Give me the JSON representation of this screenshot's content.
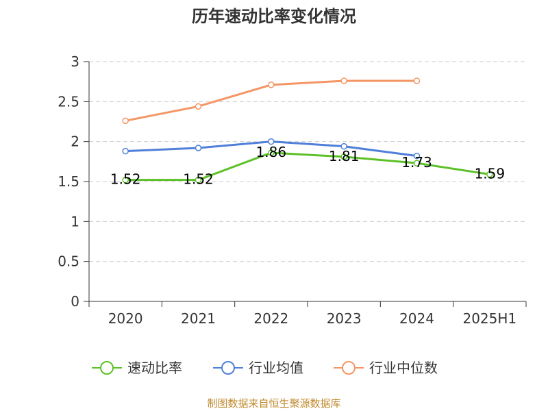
{
  "chart_data": {
    "type": "line",
    "title": "历年速动比率变化情况",
    "categories": [
      "2020",
      "2021",
      "2022",
      "2023",
      "2024",
      "2025H1"
    ],
    "ylim": [
      0,
      3
    ],
    "yticks": [
      "0",
      "0.5",
      "1",
      "1.5",
      "2",
      "2.5",
      "3"
    ],
    "grid": "horizontal dashed",
    "legend_position": "bottom",
    "series": [
      {
        "name": "速动比率",
        "color": "#5cc128",
        "values": [
          1.52,
          1.52,
          1.86,
          1.81,
          1.73,
          1.59
        ],
        "labels": [
          "1.52",
          "1.52",
          "1.86",
          "1.81",
          "1.73",
          "1.59"
        ]
      },
      {
        "name": "行业均值",
        "color": "#4f7fd9",
        "values": [
          1.88,
          1.92,
          2.0,
          1.94,
          1.82,
          null
        ]
      },
      {
        "name": "行业中位数",
        "color": "#f59564",
        "values": [
          2.26,
          2.44,
          2.71,
          2.76,
          2.76,
          null
        ]
      }
    ]
  },
  "source": "制图数据来自恒生聚源数据库"
}
